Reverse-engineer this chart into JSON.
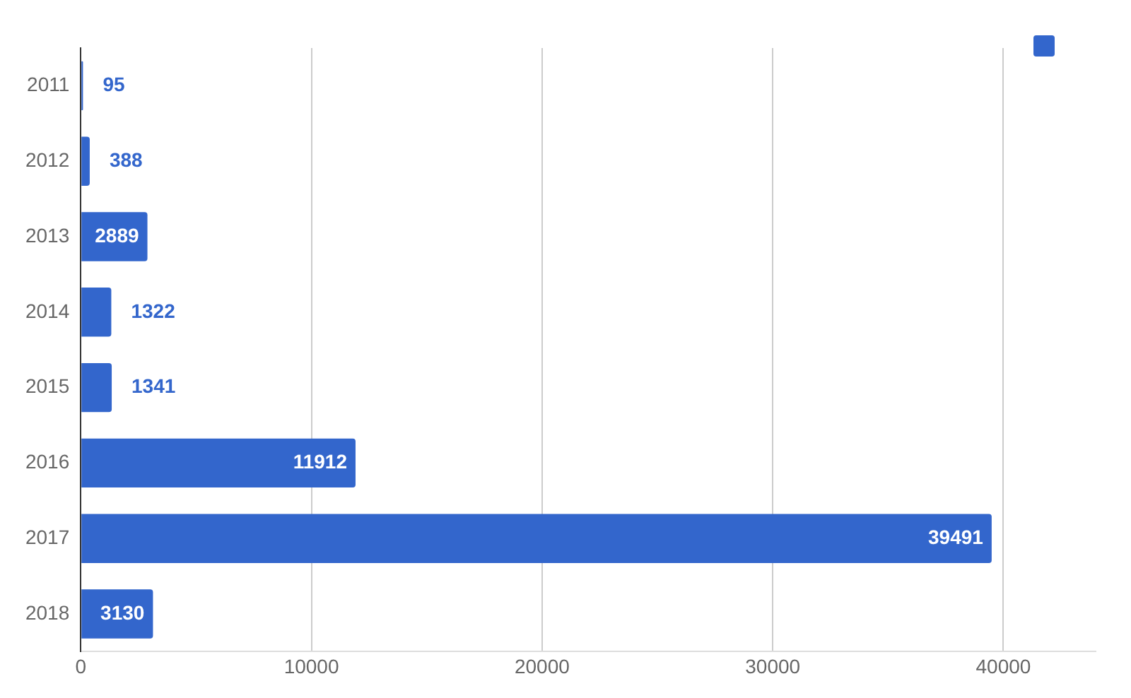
{
  "chart_data": {
    "type": "bar",
    "orientation": "horizontal",
    "categories": [
      "2011",
      "2012",
      "2013",
      "2014",
      "2015",
      "2016",
      "2017",
      "2018"
    ],
    "series": [
      {
        "color": "#3366cc",
        "values": [
          95,
          388,
          2889,
          1322,
          1341,
          11912,
          39491,
          3130
        ]
      }
    ],
    "xlim": [
      0,
      44000
    ],
    "xticks": [
      0,
      10000,
      20000,
      30000,
      40000
    ],
    "grid": "x",
    "data_labels": true
  }
}
